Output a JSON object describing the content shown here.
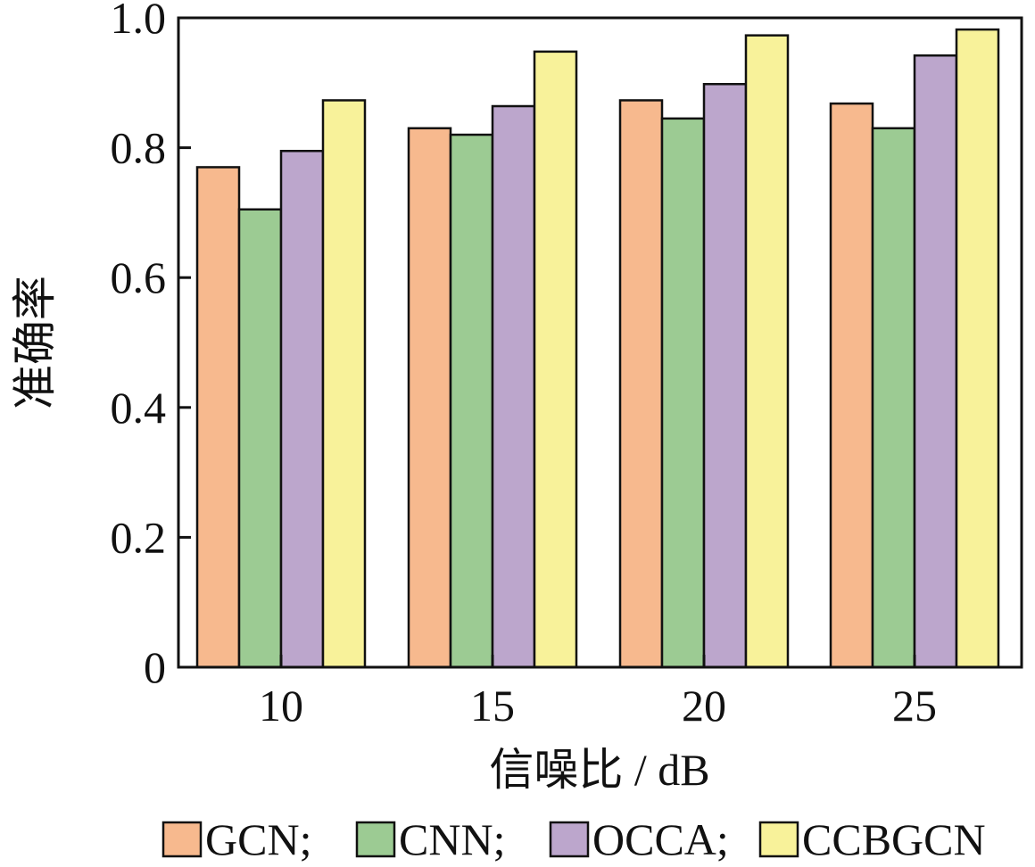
{
  "chart_data": {
    "type": "bar",
    "xlabel": "信噪比 / dB",
    "ylabel": "准确率",
    "categories": [
      "10",
      "15",
      "20",
      "25"
    ],
    "ylim": [
      0,
      1.0
    ],
    "yticks": [
      "0",
      "0.2",
      "0.4",
      "0.6",
      "0.8",
      "1.0"
    ],
    "grid": false,
    "legend_position": "bottom",
    "series": [
      {
        "name": "GCN;",
        "color": "#f7b98e",
        "values": [
          0.77,
          0.83,
          0.873,
          0.868
        ]
      },
      {
        "name": "CNN;",
        "color": "#9ccb93",
        "values": [
          0.705,
          0.82,
          0.845,
          0.83
        ]
      },
      {
        "name": "OCCA;",
        "color": "#bca6cc",
        "values": [
          0.795,
          0.864,
          0.898,
          0.942
        ]
      },
      {
        "name": "CCBGCN",
        "color": "#f8f29a",
        "values": [
          0.873,
          0.948,
          0.973,
          0.982
        ]
      }
    ]
  }
}
